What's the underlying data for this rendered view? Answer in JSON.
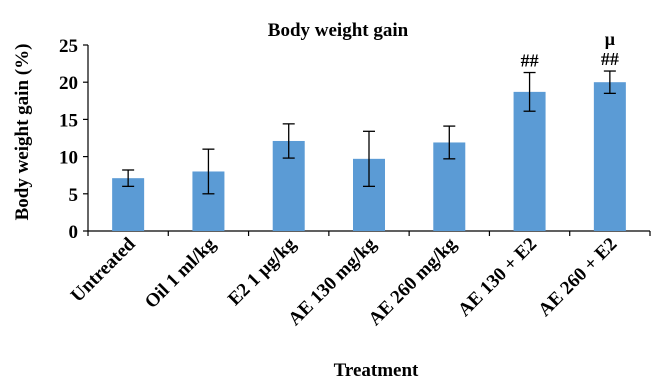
{
  "chart_data": {
    "type": "bar",
    "title": "Body weight gain",
    "xlabel": "Treatment",
    "ylabel": "Body weight gain (%)",
    "ylim": [
      0,
      25
    ],
    "yticks": [
      0,
      5,
      10,
      15,
      20,
      25
    ],
    "grid": false,
    "bar_color": "#5b9bd5",
    "categories": [
      "Untreated",
      "Oil 1 ml/kg",
      "E2 1 μg/kg",
      "AE 130 mg/kg",
      "AE 260 mg/kg",
      "AE 130 + E2",
      "AE 260 + E2"
    ],
    "series": [
      {
        "values": [
          7.1,
          8.0,
          12.1,
          9.7,
          11.9,
          18.7,
          20.0
        ],
        "errors": [
          1.1,
          3.0,
          2.3,
          3.7,
          2.2,
          2.6,
          1.5
        ]
      }
    ],
    "annotations": [
      {
        "category": "AE 130 + E2",
        "lines": [
          "##"
        ]
      },
      {
        "category": "AE 260 + E2",
        "lines": [
          "μ",
          "##"
        ]
      }
    ]
  }
}
